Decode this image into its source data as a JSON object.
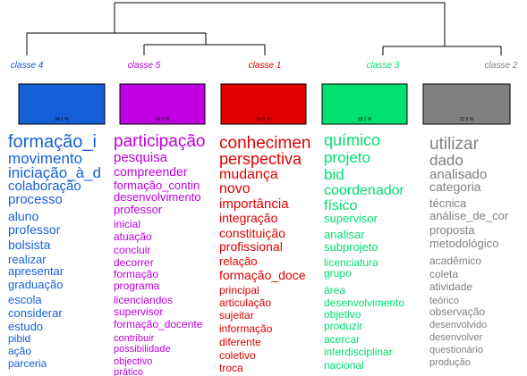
{
  "classes": [
    {
      "label": "classe 4",
      "percent": "24.1 %",
      "words": [
        "formação_i",
        "movimento",
        "iniciação_à_d",
        "colaboração",
        "processo",
        "aluno",
        "professor",
        "bolsista",
        "realizar",
        "apresentar",
        "graduação",
        "escola",
        "considerar",
        "estudo",
        "pibid",
        "ação",
        "parceria"
      ]
    },
    {
      "label": "classe 5",
      "percent": "16.5 %",
      "words": [
        "participação",
        "pesquisa",
        "compreender",
        "formação_contin",
        "desenvolvimento",
        "professor",
        "inicial",
        "atuação",
        "concluir",
        "decorrer",
        "formação",
        "programa",
        "licenciandos",
        "supervisor",
        "formação_docente",
        "contribuir",
        "possibilidade",
        "objectivo",
        "prático"
      ]
    },
    {
      "label": "classe 1",
      "percent": "14.1 %",
      "words": [
        "conhecimen",
        "perspectiva",
        "mudança",
        "novo",
        "importância",
        "integração",
        "constituição",
        "profissional",
        "relação",
        "formação_doce",
        "principal",
        "articulação",
        "sujeitar",
        "informação",
        "diferente",
        "coletivo",
        "troca"
      ]
    },
    {
      "label": "classe 3",
      "percent": "18.1 %",
      "words": [
        "químico",
        "projeto",
        "bid",
        "coordenador",
        "físico",
        "supervisor",
        "analisar",
        "subprojeto",
        "licenciatura",
        "grupo",
        "área",
        "desenvolvimento",
        "objetivo",
        "produzir",
        "acercar",
        "interdisciplinar",
        "nacional"
      ]
    },
    {
      "label": "classe 2",
      "percent": "22.9 %",
      "words": [
        "utilizar",
        "dado",
        "analisado",
        "categoria",
        "técnica",
        "análise_de_cor",
        "proposta",
        "metodológico",
        "acadêmico",
        "coleta",
        "atividade",
        "teórico",
        "observação",
        "desenvolvido",
        "desenvolver",
        "questionário",
        "produção"
      ]
    }
  ]
}
